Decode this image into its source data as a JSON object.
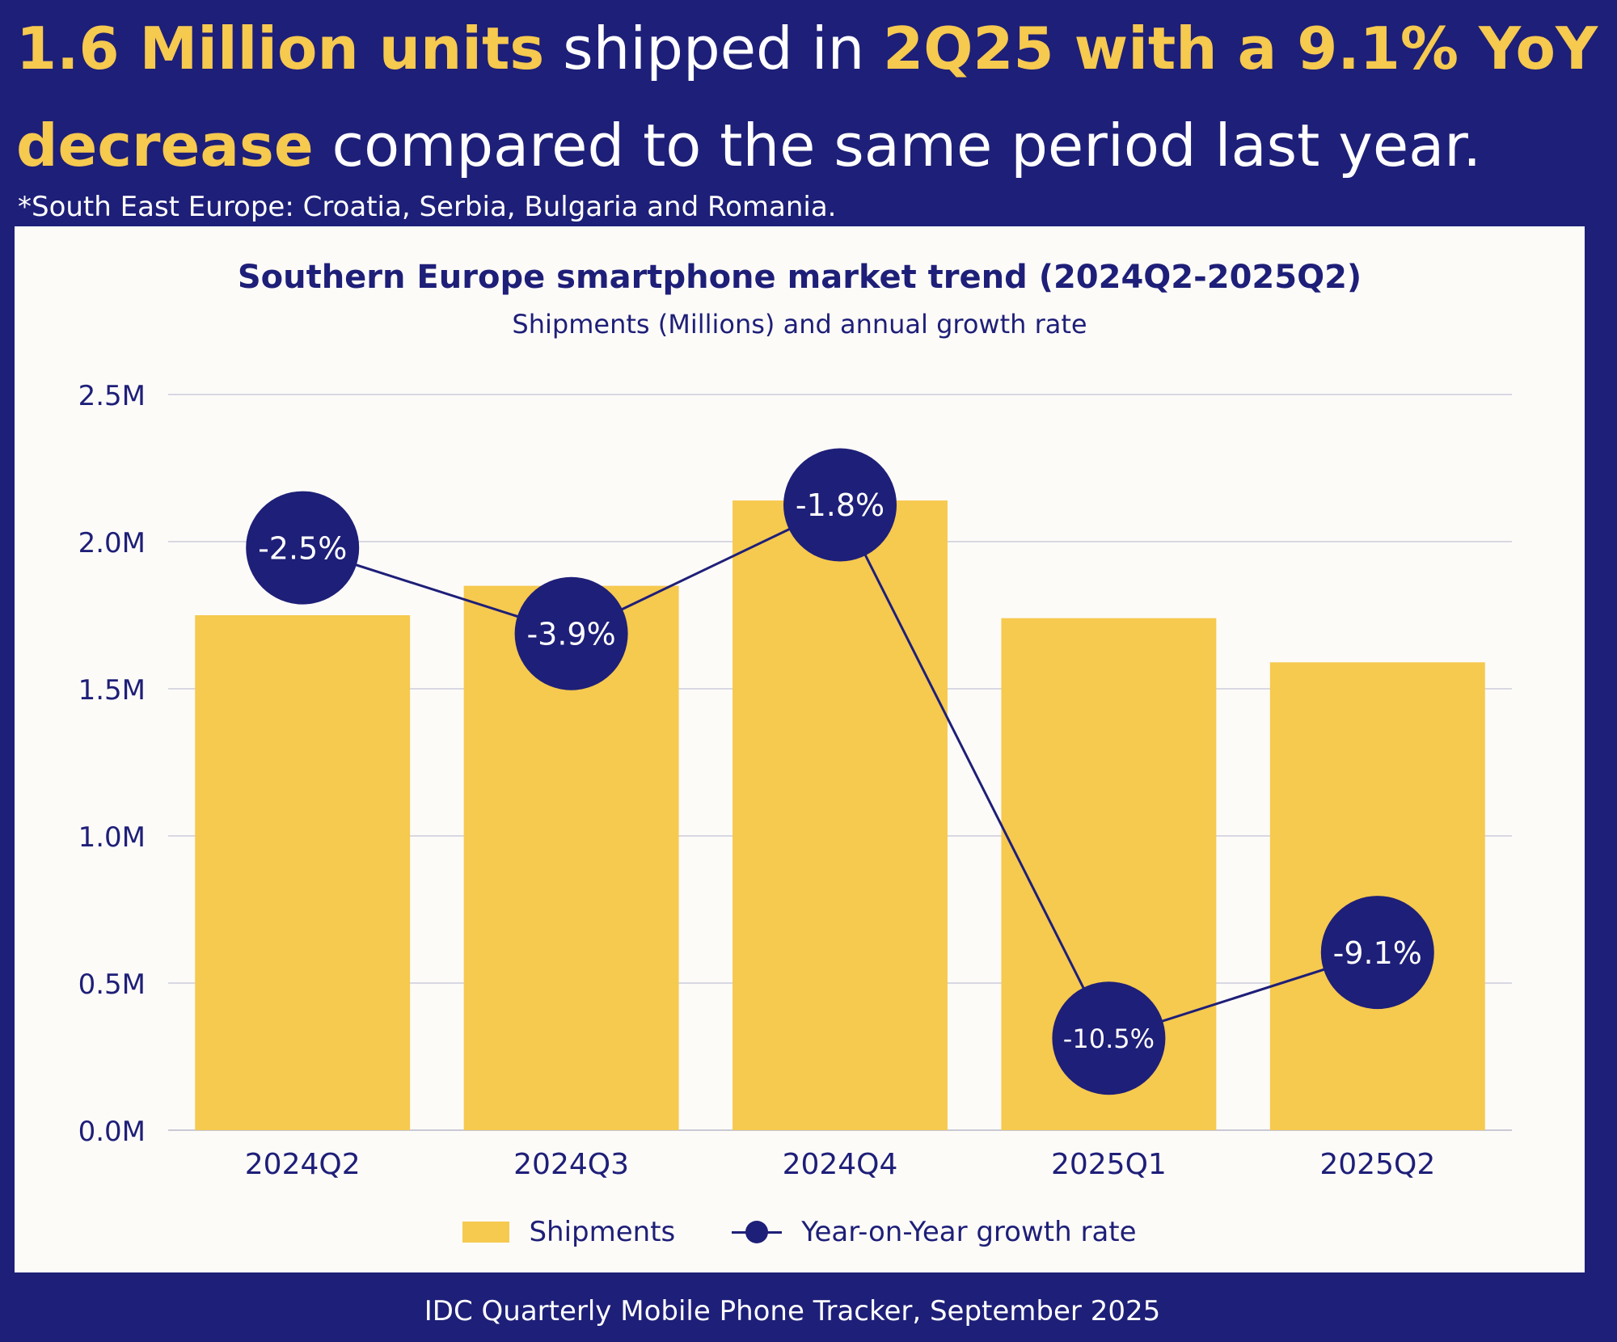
{
  "headline": {
    "part1": "1.6 Million units",
    "part2": " shipped in ",
    "part3": "2Q25 with a 9.1% YoY decrease",
    "part4": " compared to the same period last year."
  },
  "note": "*South East Europe: Croatia, Serbia, Bulgaria and Romania.",
  "source": "IDC Quarterly Mobile Phone Tracker, September 2025",
  "colors": {
    "background": "#1e1f78",
    "accent": "#f6c94f",
    "panel": "#fdfbf8"
  },
  "chart_data": {
    "type": "bar",
    "title": "Southern Europe smartphone market trend (2024Q2-2025Q2)",
    "subtitle": "Shipments (Millions) and annual growth rate",
    "categories": [
      "2024Q2",
      "2024Q3",
      "2024Q4",
      "2025Q1",
      "2025Q2"
    ],
    "yticks": [
      "0.0M",
      "0.5M",
      "1.0M",
      "1.5M",
      "2.0M",
      "2.5M"
    ],
    "ylim": [
      0,
      2.5
    ],
    "grid": true,
    "legend_position": "bottom",
    "series": [
      {
        "name": "Shipments",
        "type": "bar",
        "values": [
          1.75,
          1.85,
          2.14,
          1.74,
          1.59
        ]
      },
      {
        "name": "Year-on-Year growth rate",
        "type": "line",
        "values": [
          -2.5,
          -3.9,
          -1.8,
          -10.5,
          -9.1
        ],
        "labels": [
          "-2.5%",
          "-3.9%",
          "-1.8%",
          "-10.5%",
          "-9.1%"
        ]
      }
    ],
    "line_axis_range": [
      -12,
      0
    ]
  }
}
